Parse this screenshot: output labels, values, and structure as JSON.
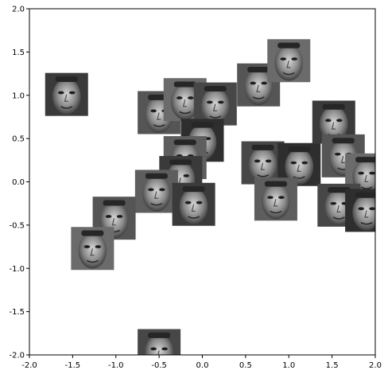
{
  "chart_data": {
    "type": "scatter",
    "title": "",
    "xlabel": "",
    "ylabel": "",
    "xlim": [
      -2.0,
      2.0
    ],
    "ylim": [
      -2.0,
      2.0
    ],
    "grid": false,
    "x_ticks": [
      "-2.0",
      "-1.5",
      "-1.0",
      "-0.5",
      "0.0",
      "0.5",
      "1.0",
      "1.5",
      "2.0"
    ],
    "y_ticks": [
      "2.0",
      "1.5",
      "1.0",
      "0.5",
      "0.0",
      "-0.5",
      "-1.0",
      "-1.5",
      "-2.0"
    ],
    "marker": "face-thumbnail-grayscale",
    "points": [
      {
        "x": -1.57,
        "y": 1.01
      },
      {
        "x": -0.5,
        "y": 0.8
      },
      {
        "x": -0.2,
        "y": 0.95
      },
      {
        "x": 0.15,
        "y": 0.9
      },
      {
        "x": 0.0,
        "y": 0.48
      },
      {
        "x": -0.2,
        "y": 0.28
      },
      {
        "x": -0.25,
        "y": 0.05
      },
      {
        "x": 0.65,
        "y": 1.12
      },
      {
        "x": 1.0,
        "y": 1.4
      },
      {
        "x": 0.7,
        "y": 0.22
      },
      {
        "x": 1.12,
        "y": 0.2
      },
      {
        "x": 0.85,
        "y": -0.2
      },
      {
        "x": 1.52,
        "y": 0.69
      },
      {
        "x": 1.63,
        "y": 0.3
      },
      {
        "x": 1.9,
        "y": 0.08
      },
      {
        "x": 1.58,
        "y": -0.27
      },
      {
        "x": 1.9,
        "y": -0.33
      },
      {
        "x": -0.53,
        "y": -0.11
      },
      {
        "x": -0.1,
        "y": -0.26
      },
      {
        "x": -1.02,
        "y": -0.42
      },
      {
        "x": -1.27,
        "y": -0.77
      },
      {
        "x": -0.5,
        "y": -1.95
      }
    ]
  }
}
